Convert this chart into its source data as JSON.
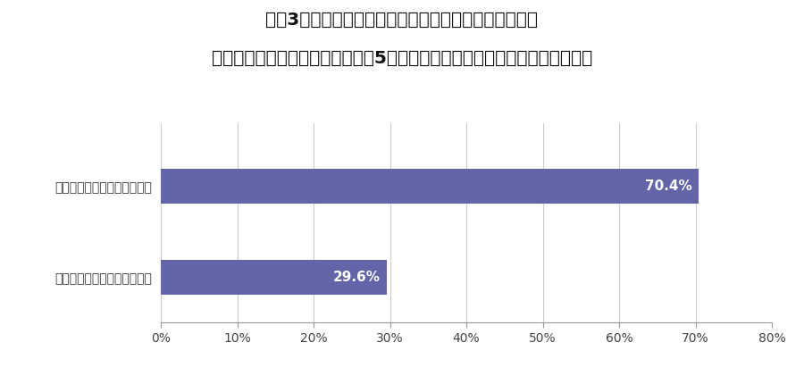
{
  "title_line1": "質問3で「１．駅からの距離」と答えた方へ質問です。",
  "title_line2": "駅からの距離に対する条件（徒歩5分以内等）はどのように変化しましたか？",
  "categories": [
    "許容できる距離が短くなった",
    "許容できる距離が長くなった"
  ],
  "values": [
    70.4,
    29.6
  ],
  "labels": [
    "70.4%",
    "29.6%"
  ],
  "bar_color": "#6464a8",
  "label_color": "#ffffff",
  "xlim": [
    0,
    80
  ],
  "xticks": [
    0,
    10,
    20,
    30,
    40,
    50,
    60,
    70,
    80
  ],
  "xtick_labels": [
    "0%",
    "10%",
    "20%",
    "30%",
    "40%",
    "50%",
    "60%",
    "70%",
    "80%"
  ],
  "background_color": "#ffffff",
  "title_fontsize": 14.5,
  "bar_label_fontsize": 11,
  "ytick_fontsize": 10,
  "xtick_fontsize": 10
}
